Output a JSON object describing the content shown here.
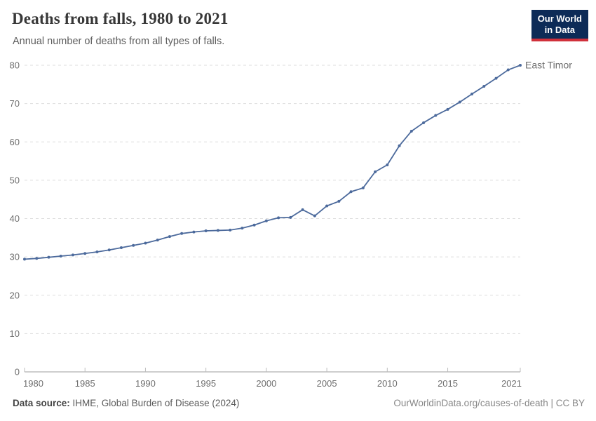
{
  "header": {
    "title": "Deaths from falls, 1980 to 2021",
    "subtitle": "Annual number of deaths from all types of falls.",
    "logo_line1": "Our World",
    "logo_line2": "in Data"
  },
  "colors": {
    "logo_background": "#0d2b57",
    "logo_accent_bar": "#d0303b",
    "series_line": "#4c6a9c",
    "gridline": "#dedede",
    "axis_line": "#9c9c9c",
    "tick_mark": "#bdbdbd",
    "tick_text": "#6e6e6e"
  },
  "chart_data": {
    "type": "line",
    "title": "Deaths from falls, 1980 to 2021",
    "subtitle": "Annual number of deaths from all types of falls.",
    "xlabel": "",
    "ylabel": "",
    "xlim": [
      1980,
      2021
    ],
    "ylim": [
      0,
      80
    ],
    "x_ticks": [
      1980,
      1985,
      1990,
      1995,
      2000,
      2005,
      2010,
      2015,
      2021
    ],
    "y_ticks": [
      0,
      10,
      20,
      30,
      40,
      50,
      60,
      70,
      80
    ],
    "grid": "horizontal-dashed",
    "legend_position": "end-of-line-label",
    "x": [
      1980,
      1981,
      1982,
      1983,
      1984,
      1985,
      1986,
      1987,
      1988,
      1989,
      1990,
      1991,
      1992,
      1993,
      1994,
      1995,
      1996,
      1997,
      1998,
      1999,
      2000,
      2001,
      2002,
      2003,
      2004,
      2005,
      2006,
      2007,
      2008,
      2009,
      2010,
      2011,
      2012,
      2013,
      2014,
      2015,
      2016,
      2017,
      2018,
      2019,
      2020,
      2021
    ],
    "series": [
      {
        "name": "East Timor",
        "color": "#4c6a9c",
        "values": [
          29.4,
          29.6,
          29.9,
          30.2,
          30.5,
          30.9,
          31.3,
          31.8,
          32.4,
          33.0,
          33.6,
          34.4,
          35.3,
          36.1,
          36.5,
          36.8,
          36.9,
          37.0,
          37.5,
          38.3,
          39.4,
          40.2,
          40.3,
          42.3,
          40.7,
          43.3,
          44.5,
          47.0,
          48.0,
          52.2,
          54.0,
          59.0,
          62.8,
          65.0,
          66.9,
          68.5,
          70.4,
          72.5,
          74.5,
          76.6,
          78.8,
          80.0
        ]
      }
    ]
  },
  "footer": {
    "source_label": "Data source:",
    "source_value": "IHME, Global Burden of Disease (2024)",
    "attribution": "OurWorldinData.org/causes-of-death | CC BY"
  }
}
